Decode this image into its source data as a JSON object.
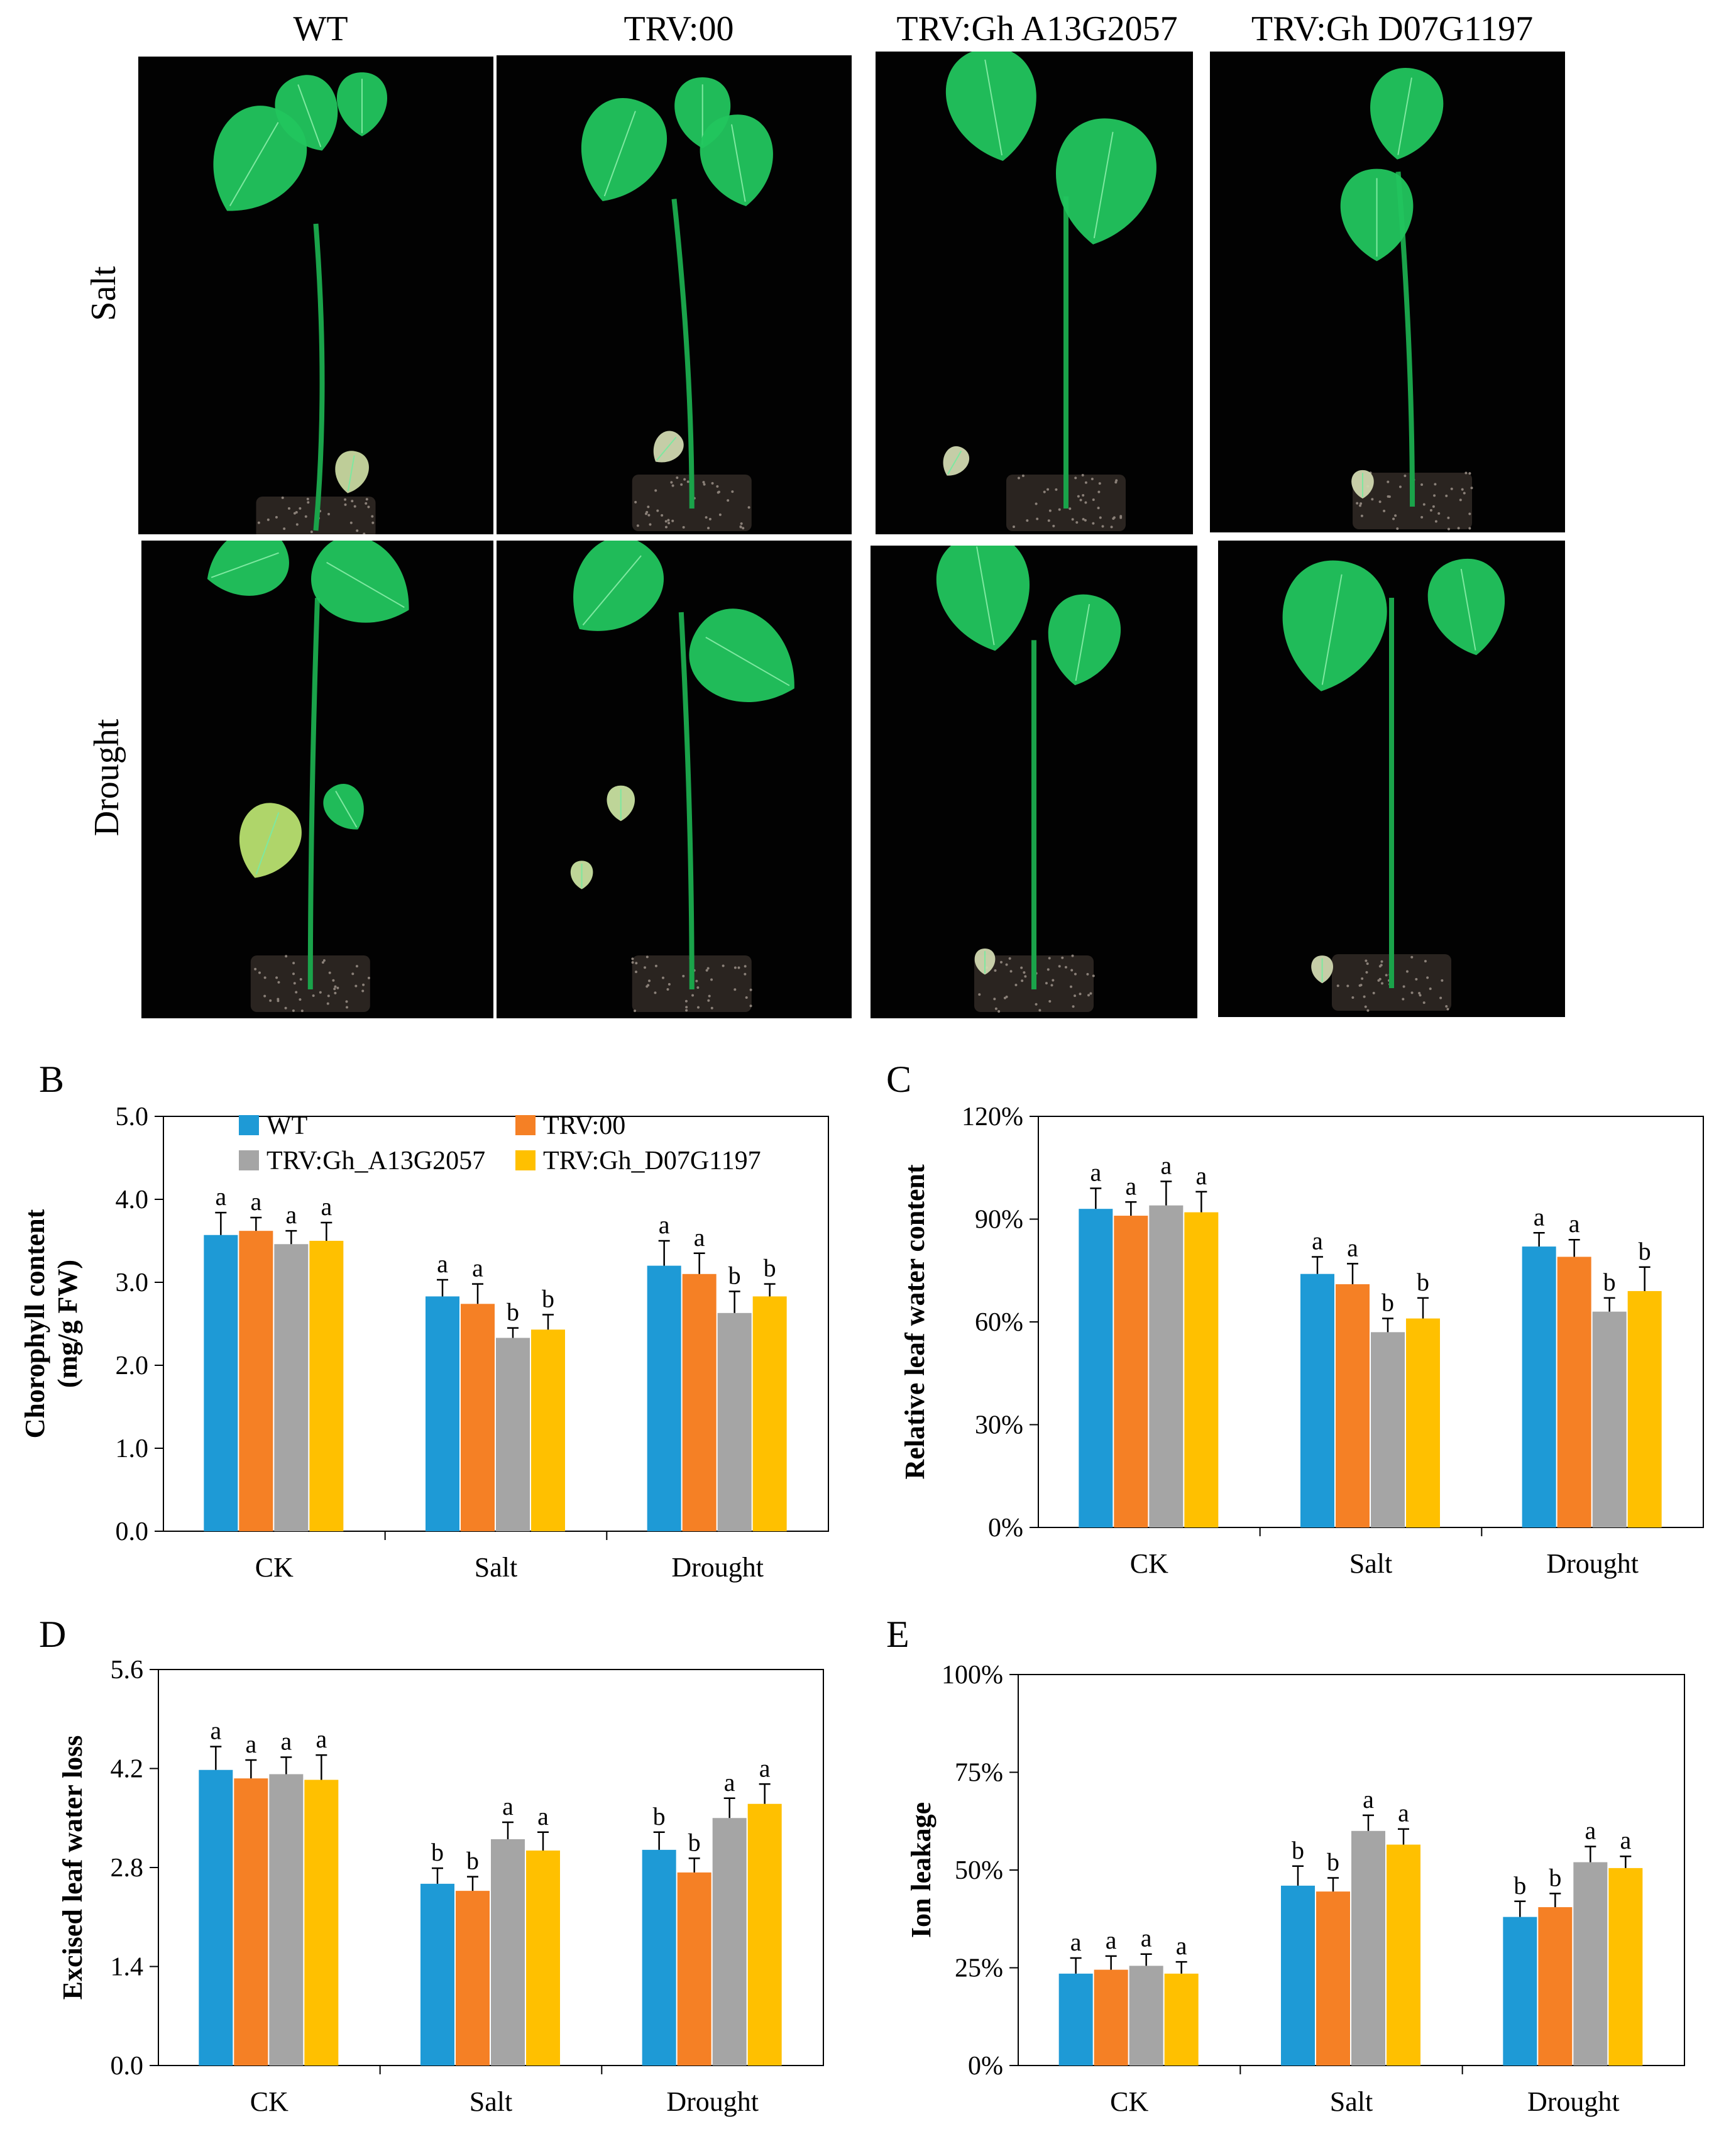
{
  "figure": {
    "column_labels": [
      "WT",
      "TRV:00",
      "TRV:Gh  A13G2057",
      "TRV:Gh  D07G1197"
    ],
    "row_labels": [
      "Salt",
      "Drought"
    ],
    "panel_letters": [
      "B",
      "C",
      "D",
      "E"
    ]
  },
  "colors": {
    "WT": "#1E9AD6",
    "TRV:00": "#F58025",
    "TRV:Gh_A13G2057": "#A5A5A5",
    "TRV:Gh_D07G1197": "#FFC000",
    "plant_bg": "#020202",
    "leaf": "#22C55E",
    "soil": "#2a2420"
  },
  "chart_data": [
    {
      "panel": "B",
      "type": "bar",
      "title": "",
      "xlabel": "",
      "ylabel": "Chorophyll content (mg/g FW)",
      "categories": [
        "CK",
        "Salt",
        "Drought"
      ],
      "ylim": [
        0,
        5.0
      ],
      "yticks": [
        "0.0",
        "1.0",
        "2.0",
        "3.0",
        "4.0",
        "5.0"
      ],
      "legend": [
        "WT",
        "TRV:00",
        "TRV:Gh_A13G2057",
        "TRV:Gh_D07G1197"
      ],
      "series": [
        {
          "name": "WT",
          "values": [
            3.57,
            2.83,
            3.2
          ],
          "errors": [
            0.27,
            0.2,
            0.3
          ],
          "letters": [
            "a",
            "a",
            "a"
          ]
        },
        {
          "name": "TRV:00",
          "values": [
            3.62,
            2.74,
            3.1
          ],
          "errors": [
            0.16,
            0.24,
            0.25
          ],
          "letters": [
            "a",
            "a",
            "a"
          ]
        },
        {
          "name": "TRV:Gh_A13G2057",
          "values": [
            3.46,
            2.33,
            2.63
          ],
          "errors": [
            0.16,
            0.12,
            0.26
          ],
          "letters": [
            "a",
            "b",
            "b"
          ]
        },
        {
          "name": "TRV:Gh_D07G1197",
          "values": [
            3.5,
            2.43,
            2.83
          ],
          "errors": [
            0.22,
            0.18,
            0.15
          ],
          "letters": [
            "a",
            "b",
            "b"
          ]
        }
      ]
    },
    {
      "panel": "C",
      "type": "bar",
      "title": "",
      "xlabel": "",
      "ylabel": "Relative leaf water content",
      "categories": [
        "CK",
        "Salt",
        "Drought"
      ],
      "ylim": [
        0,
        120
      ],
      "yticks": [
        "0%",
        "30%",
        "60%",
        "90%",
        "120%"
      ],
      "series": [
        {
          "name": "WT",
          "values": [
            93,
            74,
            82
          ],
          "errors": [
            6,
            5,
            4
          ],
          "letters": [
            "a",
            "a",
            "a"
          ]
        },
        {
          "name": "TRV:00",
          "values": [
            91,
            71,
            79
          ],
          "errors": [
            4,
            6,
            5
          ],
          "letters": [
            "a",
            "a",
            "a"
          ]
        },
        {
          "name": "TRV:Gh_A13G2057",
          "values": [
            94,
            57,
            63
          ],
          "errors": [
            7,
            4,
            4
          ],
          "letters": [
            "a",
            "b",
            "b"
          ]
        },
        {
          "name": "TRV:Gh_D07G1197",
          "values": [
            92,
            61,
            69
          ],
          "errors": [
            6,
            6,
            7
          ],
          "letters": [
            "a",
            "b",
            "b"
          ]
        }
      ]
    },
    {
      "panel": "D",
      "type": "bar",
      "title": "",
      "xlabel": "",
      "ylabel": "Excised leaf water loss",
      "categories": [
        "CK",
        "Salt",
        "Drought"
      ],
      "ylim": [
        0,
        5.6
      ],
      "yticks": [
        "0.0",
        "1.4",
        "2.8",
        "4.2",
        "5.6"
      ],
      "series": [
        {
          "name": "WT",
          "values": [
            4.18,
            2.57,
            3.05
          ],
          "errors": [
            0.33,
            0.22,
            0.25
          ],
          "letters": [
            "a",
            "b",
            "b"
          ]
        },
        {
          "name": "TRV:00",
          "values": [
            4.06,
            2.47,
            2.73
          ],
          "errors": [
            0.26,
            0.2,
            0.2
          ],
          "letters": [
            "a",
            "b",
            "b"
          ]
        },
        {
          "name": "TRV:Gh_A13G2057",
          "values": [
            4.12,
            3.2,
            3.5
          ],
          "errors": [
            0.24,
            0.24,
            0.28
          ],
          "letters": [
            "a",
            "a",
            "a"
          ]
        },
        {
          "name": "TRV:Gh_D07G1197",
          "values": [
            4.04,
            3.04,
            3.7
          ],
          "errors": [
            0.35,
            0.26,
            0.28
          ],
          "letters": [
            "a",
            "a",
            "a"
          ]
        }
      ]
    },
    {
      "panel": "E",
      "type": "bar",
      "title": "",
      "xlabel": "",
      "ylabel": "Ion leakage",
      "categories": [
        "CK",
        "Salt",
        "Drought"
      ],
      "ylim": [
        0,
        100
      ],
      "yticks": [
        "0%",
        "25%",
        "50%",
        "75%",
        "100%"
      ],
      "series": [
        {
          "name": "WT",
          "values": [
            23.5,
            46,
            38
          ],
          "errors": [
            4,
            5,
            4
          ],
          "letters": [
            "a",
            "b",
            "b"
          ]
        },
        {
          "name": "TRV:00",
          "values": [
            24.5,
            44.5,
            40.5
          ],
          "errors": [
            3.5,
            3.5,
            3.5
          ],
          "letters": [
            "a",
            "b",
            "b"
          ]
        },
        {
          "name": "TRV:Gh_A13G2057",
          "values": [
            25.5,
            60,
            52
          ],
          "errors": [
            3,
            4,
            4
          ],
          "letters": [
            "a",
            "a",
            "a"
          ]
        },
        {
          "name": "TRV:Gh_D07G1197",
          "values": [
            23.5,
            56.5,
            50.5
          ],
          "errors": [
            3,
            4,
            3
          ],
          "letters": [
            "a",
            "a",
            "a"
          ]
        }
      ]
    }
  ]
}
